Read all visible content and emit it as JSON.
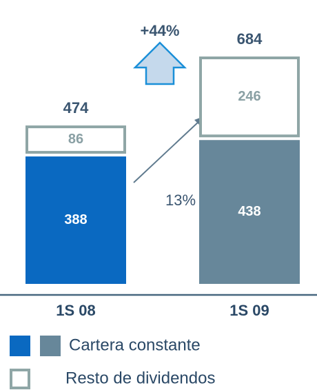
{
  "chart_data": {
    "type": "stacked-bar",
    "categories": [
      "1S 08",
      "1S 09"
    ],
    "series": [
      {
        "name": "Cartera constante",
        "colors": [
          "#0a69c1",
          "#67879a"
        ],
        "values": [
          388,
          438
        ]
      },
      {
        "name": "Resto de dividendos",
        "color": "#ffffff",
        "border": "#8fa6a6",
        "values": [
          86,
          246
        ]
      }
    ],
    "totals": [
      474,
      684
    ],
    "annotations": [
      "+44%",
      "13%"
    ]
  }
}
